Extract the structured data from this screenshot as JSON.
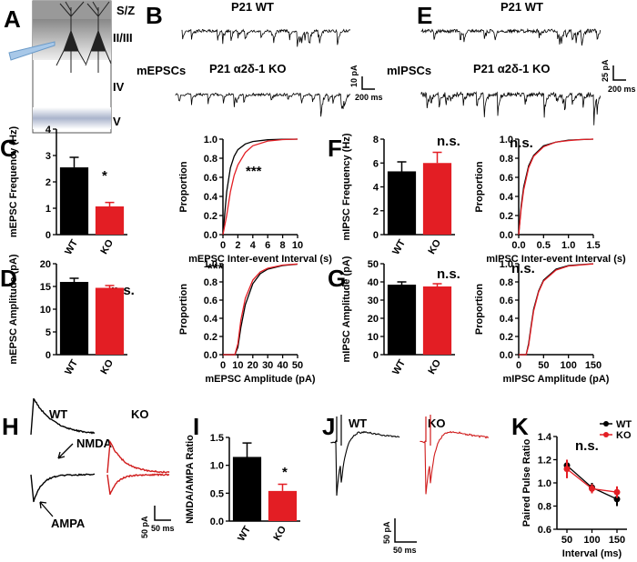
{
  "text": {
    "A": "A",
    "B": "B",
    "C": "C",
    "D": "D",
    "E": "E",
    "F": "F",
    "G": "G",
    "H": "H",
    "I": "I",
    "J": "J",
    "K": "K",
    "sz": "S/Z",
    "l23": "II/III",
    "l4": "IV",
    "l5": "V",
    "b_wt": "P21 WT",
    "b_ko": "P21 α2δ-1 KO",
    "b_name": "mEPSCs",
    "b_sy": "10 pA",
    "b_sx": "200 ms",
    "e_wt": "P21 WT",
    "e_ko": "P21 α2δ-1 KO",
    "e_name": "mIPSCs",
    "e_sy": "25 pA",
    "e_sx": "200 ms",
    "h_wt": "WT",
    "h_ko": "KO",
    "h_nmda": "NMDA",
    "h_ampa": "AMPA",
    "h_sy": "50 pA",
    "h_sx": "50 ms",
    "j_wt": "WT",
    "j_ko": "KO",
    "j_sy": "50 pA",
    "j_sx": "50 ms"
  },
  "chart_data": [
    {
      "type": "bar",
      "ylabel": "mEPSC Frequency (Hz)",
      "categories": [
        "WT",
        "KO"
      ],
      "values": [
        2.55,
        1.07
      ],
      "errors": [
        0.38,
        0.15
      ],
      "colors": [
        "#000000",
        "#e31e24"
      ],
      "ylim": [
        0,
        4
      ],
      "yticks": [
        0,
        1,
        2,
        3,
        4
      ],
      "annotation": "*"
    },
    {
      "type": "line",
      "ylabel": "Proportion",
      "xlabel": "mEPSC Inter-event Interval (s)",
      "x": [
        0,
        0.5,
        1,
        1.5,
        2,
        3,
        4,
        6,
        8,
        10
      ],
      "series": [
        {
          "color": "#000000",
          "values": [
            0,
            0.45,
            0.7,
            0.82,
            0.89,
            0.95,
            0.975,
            0.993,
            0.998,
            1
          ]
        },
        {
          "color": "#e31e24",
          "values": [
            0,
            0.2,
            0.45,
            0.62,
            0.73,
            0.86,
            0.93,
            0.98,
            0.995,
            1
          ]
        }
      ],
      "xlim": [
        0,
        10
      ],
      "xticks": [
        0,
        2,
        4,
        6,
        8,
        10
      ],
      "ylim": [
        0,
        1
      ],
      "yticks": [
        {
          "value": 0,
          "label": "0.0"
        },
        0.2,
        0.4,
        0.6,
        0.8,
        {
          "value": 1,
          "label": "1.0"
        }
      ],
      "annotation": "***"
    },
    {
      "type": "bar",
      "ylabel": "mEPSC Amplitude (pA)",
      "categories": [
        "WT",
        "KO"
      ],
      "values": [
        16,
        14.7
      ],
      "errors": [
        0.8,
        0.5
      ],
      "colors": [
        "#000000",
        "#e31e24"
      ],
      "ylim": [
        0,
        20
      ],
      "yticks": [
        0,
        5,
        10,
        15,
        20
      ],
      "annotation": "n.s."
    },
    {
      "type": "line",
      "ylabel": "Proportion",
      "xlabel": "mEPSC Amplitude (pA)",
      "x": [
        0,
        8,
        10,
        12,
        15,
        20,
        25,
        30,
        40,
        50
      ],
      "series": [
        {
          "color": "#000000",
          "values": [
            0,
            0,
            0.08,
            0.3,
            0.55,
            0.78,
            0.89,
            0.94,
            0.98,
            0.995
          ]
        },
        {
          "color": "#e31e24",
          "values": [
            0,
            0,
            0.12,
            0.38,
            0.62,
            0.82,
            0.91,
            0.95,
            0.985,
            0.997
          ]
        }
      ],
      "xlim": [
        0,
        50
      ],
      "xticks": [
        0,
        10,
        20,
        30,
        40,
        50
      ],
      "ylim": [
        0,
        1
      ],
      "yticks": [
        {
          "value": 0,
          "label": "0.0"
        },
        0.2,
        0.4,
        0.6,
        0.8,
        {
          "value": 1,
          "label": "1.0"
        }
      ],
      "annotation": "***"
    },
    {
      "type": "bar",
      "ylabel": "mIPSC Frequency (Hz)",
      "categories": [
        "WT",
        "KO"
      ],
      "values": [
        5.3,
        6.0
      ],
      "errors": [
        0.8,
        0.9
      ],
      "colors": [
        "#000000",
        "#e31e24"
      ],
      "ylim": [
        0,
        8
      ],
      "yticks": [
        0,
        2,
        4,
        6,
        8
      ],
      "annotation": "n.s."
    },
    {
      "type": "line",
      "ylabel": "Proportion",
      "xlabel": "mIPSC Inter-event Interval (s)",
      "x": [
        0,
        0.05,
        0.1,
        0.2,
        0.3,
        0.5,
        0.75,
        1,
        1.25,
        1.5
      ],
      "series": [
        {
          "color": "#000000",
          "values": [
            0,
            0.3,
            0.5,
            0.72,
            0.83,
            0.93,
            0.97,
            0.99,
            0.995,
            1
          ]
        },
        {
          "color": "#e31e24",
          "values": [
            0,
            0.27,
            0.47,
            0.7,
            0.82,
            0.92,
            0.97,
            0.985,
            0.995,
            1
          ]
        }
      ],
      "xlim": [
        0,
        1.5
      ],
      "xticks": [
        {
          "value": 0,
          "label": "0.0"
        },
        0.5,
        {
          "value": 1,
          "label": "1.0"
        },
        1.5
      ],
      "ylim": [
        0,
        1
      ],
      "yticks": [
        {
          "value": 0,
          "label": "0.0"
        },
        0.2,
        0.4,
        0.6,
        0.8,
        {
          "value": 1,
          "label": "1.0"
        }
      ],
      "annotation": "n.s."
    },
    {
      "type": "bar",
      "ylabel": "mIPSC Amplitude (pA)",
      "categories": [
        "WT",
        "KO"
      ],
      "values": [
        38.5,
        37.5
      ],
      "errors": [
        1.5,
        1.5
      ],
      "colors": [
        "#000000",
        "#e31e24"
      ],
      "ylim": [
        0,
        50
      ],
      "yticks": [
        0,
        10,
        20,
        30,
        40,
        50
      ],
      "annotation": "n.s."
    },
    {
      "type": "line",
      "ylabel": "Proportion",
      "xlabel": "mIPSC Amplitude (pA)",
      "x": [
        0,
        15,
        20,
        25,
        30,
        40,
        50,
        75,
        100,
        150
      ],
      "series": [
        {
          "color": "#000000",
          "values": [
            0,
            0,
            0.12,
            0.32,
            0.5,
            0.7,
            0.82,
            0.94,
            0.98,
            1
          ]
        },
        {
          "color": "#e31e24",
          "values": [
            0,
            0,
            0.1,
            0.3,
            0.48,
            0.69,
            0.81,
            0.93,
            0.975,
            0.998
          ]
        }
      ],
      "xlim": [
        0,
        150
      ],
      "xticks": [
        0,
        50,
        100,
        150
      ],
      "ylim": [
        0,
        1
      ],
      "yticks": [
        {
          "value": 0,
          "label": "0.0"
        },
        0.2,
        0.4,
        0.6,
        0.8,
        {
          "value": 1,
          "label": "1.0"
        }
      ],
      "annotation": "n.s."
    },
    {
      "type": "bar",
      "ylabel": "NMDA/AMPA Ratio",
      "categories": [
        "WT",
        "KO"
      ],
      "values": [
        1.15,
        0.54
      ],
      "errors": [
        0.25,
        0.12
      ],
      "colors": [
        "#000000",
        "#e31e24"
      ],
      "ylim": [
        0,
        1.5
      ],
      "yticks": [
        {
          "value": 0,
          "label": "0.0"
        },
        0.5,
        {
          "value": 1,
          "label": "1.0"
        },
        1.5
      ],
      "annotation": "*"
    },
    {
      "type": "line",
      "ylabel": "Paired Pulse Ratio",
      "xlabel": "Interval (ms)",
      "x": [
        50,
        100,
        150
      ],
      "series": [
        {
          "name": "WT",
          "color": "#000000",
          "values": [
            1.15,
            0.96,
            0.86
          ],
          "errors": [
            0.05,
            0.04,
            0.06
          ]
        },
        {
          "name": "KO",
          "color": "#e31e24",
          "values": [
            1.12,
            0.95,
            0.92
          ],
          "errors": [
            0.08,
            0.04,
            0.05
          ]
        }
      ],
      "xlim": [
        30,
        170
      ],
      "xticks": [
        50,
        100,
        150
      ],
      "ylim": [
        0.6,
        1.4
      ],
      "yticks": [
        0.6,
        0.8,
        {
          "value": 1,
          "label": "1.0"
        },
        1.2,
        1.4
      ],
      "legend": "top-right",
      "annotation": "n.s."
    }
  ]
}
